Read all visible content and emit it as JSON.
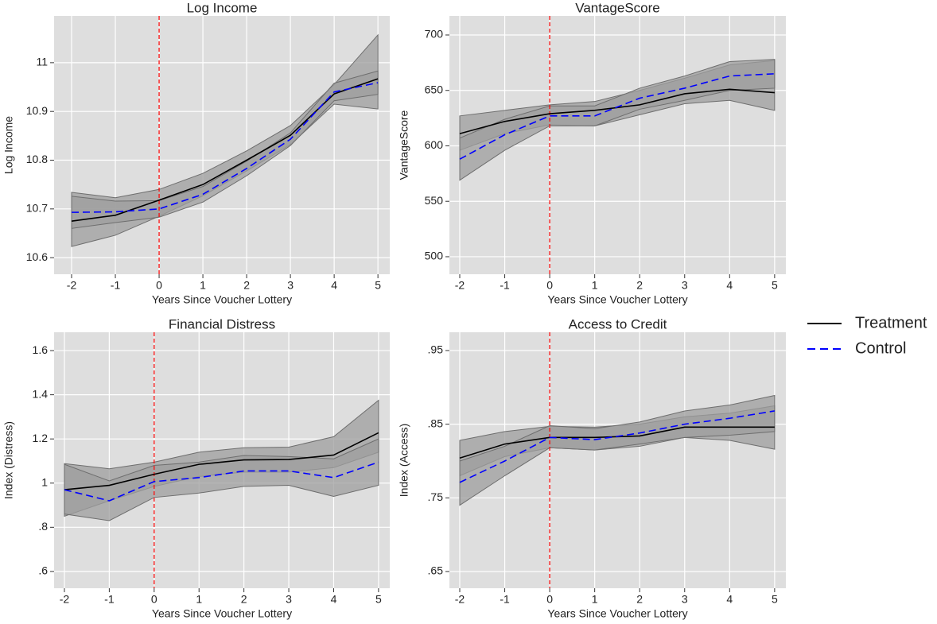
{
  "legend": {
    "position": "right",
    "entries": [
      {
        "name": "Treatment",
        "color": "#000000",
        "dash": false
      },
      {
        "name": "Control",
        "color": "#0000ff",
        "dash": true
      }
    ]
  },
  "chart_data": [
    {
      "type": "line",
      "title": "Log Income",
      "xlabel": "Years Since Voucher Lottery",
      "ylabel": "Log Income",
      "x": [
        -2,
        -1,
        0,
        1,
        2,
        3,
        4,
        5
      ],
      "xlim": [
        -2.4,
        5.27
      ],
      "xticks": [
        -2,
        -1,
        0,
        1,
        2,
        3,
        4,
        5
      ],
      "ylim": [
        10.566,
        11.096
      ],
      "yticks": [
        10.6,
        10.7,
        10.8,
        10.9,
        11
      ],
      "grid": true,
      "vline": 0,
      "vline_color": "#ff0000",
      "series": [
        {
          "values": [
            10.675,
            10.687,
            10.718,
            10.75,
            10.8,
            10.851,
            10.936,
            10.967
          ],
          "lower": [
            10.623,
            10.646,
            10.685,
            10.727,
            10.778,
            10.832,
            10.915,
            10.905
          ],
          "upper": [
            10.734,
            10.723,
            10.74,
            10.773,
            10.819,
            10.871,
            10.955,
            11.057
          ]
        },
        {
          "values": [
            10.693,
            10.694,
            10.7,
            10.73,
            10.783,
            10.843,
            10.94,
            10.959
          ],
          "lower": [
            10.66,
            10.672,
            10.683,
            10.714,
            10.768,
            10.83,
            10.922,
            10.935
          ],
          "upper": [
            10.726,
            10.716,
            10.717,
            10.746,
            10.798,
            10.856,
            10.958,
            10.983
          ]
        }
      ]
    },
    {
      "type": "line",
      "title": "VantageScore",
      "xlabel": "Years Since Voucher Lottery",
      "ylabel": "VantageScore",
      "x": [
        -2,
        -1,
        0,
        1,
        2,
        3,
        4,
        5
      ],
      "xlim": [
        -2.23,
        5.25
      ],
      "xticks": [
        -2,
        -1,
        0,
        1,
        2,
        3,
        4,
        5
      ],
      "ylim": [
        484.2,
        717.2
      ],
      "yticks": [
        500,
        550,
        600,
        650,
        700
      ],
      "grid": true,
      "vline": 0,
      "vline_color": "#ff0000",
      "series": [
        {
          "values": [
            611,
            622,
            629,
            632,
            637,
            647,
            651,
            648
          ],
          "lower": [
            596,
            611,
            619,
            618,
            628,
            638,
            641,
            632
          ],
          "upper": [
            627,
            632,
            637,
            640,
            650,
            661,
            673,
            677
          ]
        },
        {
          "values": [
            588,
            610,
            627,
            627,
            643,
            652,
            663,
            665
          ],
          "lower": [
            569,
            596,
            618,
            618,
            633,
            641,
            650,
            652
          ],
          "upper": [
            607,
            624,
            636,
            636,
            652,
            663,
            676,
            678
          ]
        }
      ]
    },
    {
      "type": "line",
      "title": "Financial Distress",
      "xlabel": "Years Since Voucher Lottery",
      "ylabel": "Index (Distress)",
      "x": [
        -2,
        -1,
        0,
        1,
        2,
        3,
        4,
        5
      ],
      "xlim": [
        -2.23,
        5.25
      ],
      "xticks": [
        -2,
        -1,
        0,
        1,
        2,
        3,
        4,
        5
      ],
      "ylim": [
        0.524,
        1.683
      ],
      "yticks": [
        {
          "value": 0.6,
          "label": ".6"
        },
        {
          "value": 0.8,
          "label": ".8"
        },
        1,
        1.2,
        1.4,
        1.6
      ],
      "grid": true,
      "vline": 0,
      "vline_color": "#ff0000",
      "series": [
        {
          "values": [
            0.97,
            0.99,
            1.04,
            1.085,
            1.105,
            1.107,
            1.127,
            1.228
          ],
          "lower": [
            0.85,
            0.92,
            0.985,
            1.03,
            1.05,
            1.05,
            1.07,
            1.14
          ],
          "upper": [
            1.088,
            1.065,
            1.095,
            1.14,
            1.16,
            1.163,
            1.21,
            1.375
          ]
        },
        {
          "values": [
            0.97,
            0.92,
            1.007,
            1.025,
            1.055,
            1.055,
            1.025,
            1.095
          ],
          "lower": [
            0.86,
            0.83,
            0.935,
            0.955,
            0.985,
            0.99,
            0.94,
            0.99
          ],
          "upper": [
            1.085,
            1.01,
            1.08,
            1.095,
            1.125,
            1.12,
            1.11,
            1.2
          ]
        }
      ]
    },
    {
      "type": "line",
      "title": "Access to Credit",
      "xlabel": "Years Since Voucher Lottery",
      "ylabel": "Index (Access)",
      "x": [
        -2,
        -1,
        0,
        1,
        2,
        3,
        4,
        5
      ],
      "xlim": [
        -2.23,
        5.25
      ],
      "xticks": [
        -2,
        -1,
        0,
        1,
        2,
        3,
        4,
        5
      ],
      "ylim": [
        0.6273,
        0.9748
      ],
      "yticks": [
        {
          "value": 0.65,
          "label": ".65"
        },
        {
          "value": 0.75,
          "label": ".75"
        },
        {
          "value": 0.85,
          "label": ".85"
        },
        {
          "value": 0.95,
          "label": ".95"
        }
      ],
      "grid": true,
      "vline": 0,
      "vline_color": "#ff0000",
      "series": [
        {
          "values": [
            0.804,
            0.823,
            0.832,
            0.832,
            0.834,
            0.846,
            0.846,
            0.846
          ],
          "lower": [
            0.78,
            0.806,
            0.818,
            0.815,
            0.82,
            0.832,
            0.828,
            0.816
          ],
          "upper": [
            0.828,
            0.84,
            0.847,
            0.846,
            0.85,
            0.86,
            0.865,
            0.875
          ]
        },
        {
          "values": [
            0.771,
            0.8,
            0.832,
            0.829,
            0.838,
            0.85,
            0.858,
            0.868
          ],
          "lower": [
            0.74,
            0.78,
            0.818,
            0.815,
            0.823,
            0.832,
            0.835,
            0.84
          ],
          "upper": [
            0.8,
            0.82,
            0.848,
            0.844,
            0.853,
            0.868,
            0.876,
            0.889
          ]
        }
      ]
    }
  ]
}
